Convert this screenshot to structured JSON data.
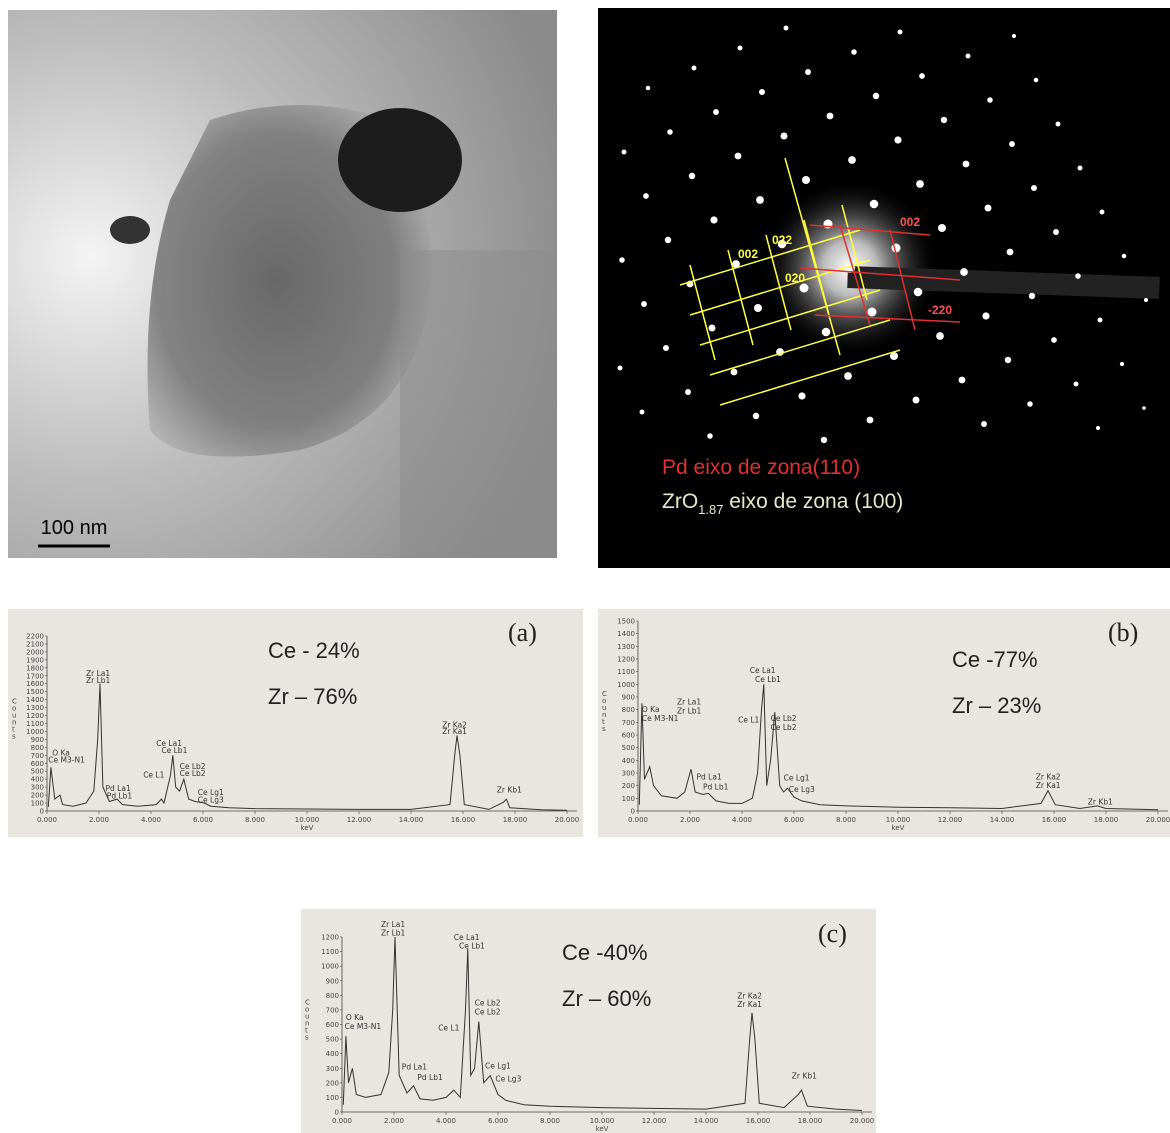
{
  "images": [
    {
      "scale_bar": "100 nm"
    },
    {
      "spot_labels": [
        {
          "text": "002",
          "color": "#ffff40"
        },
        {
          "text": "022",
          "color": "#ffff40"
        },
        {
          "text": "020",
          "color": "#ffff40"
        },
        {
          "text": "002",
          "color": "#ff5050"
        },
        {
          "text": "-220",
          "color": "#ff5050"
        }
      ],
      "legend_pd": "Pd eixo de zona(110)",
      "legend_zr": {
        "text": "ZrO",
        "sub": "1.87",
        "rest": " eixo de zona (100)"
      }
    }
  ],
  "chart_data": [
    {
      "type": "line",
      "panel": "(a)",
      "composition": [
        "Ce - 24%",
        "Zr – 76%"
      ],
      "y_label": "Counts",
      "x_label": "keV",
      "color": "#333333",
      "x": [
        0.05,
        0.15,
        0.3,
        0.5,
        0.6,
        1.0,
        1.5,
        1.8,
        1.95,
        2.04,
        2.15,
        2.4,
        2.7,
        2.9,
        3.5,
        4.2,
        4.4,
        4.5,
        4.75,
        4.84,
        4.95,
        5.1,
        5.26,
        5.45,
        5.7,
        6.05,
        6.3,
        7,
        8,
        10,
        12,
        14,
        15.5,
        15.68,
        15.77,
        15.88,
        16.05,
        17,
        17.55,
        17.67,
        17.8,
        19,
        20
      ],
      "values": [
        50,
        550,
        150,
        200,
        80,
        60,
        100,
        250,
        900,
        1600,
        300,
        120,
        150,
        80,
        60,
        80,
        150,
        100,
        450,
        700,
        300,
        250,
        400,
        150,
        120,
        100,
        60,
        40,
        30,
        25,
        20,
        20,
        80,
        700,
        950,
        700,
        80,
        20,
        110,
        150,
        40,
        15,
        10
      ],
      "xlim": [
        0,
        20
      ],
      "ylim": [
        0,
        2200
      ],
      "xticks": [
        {
          "value": 0,
          "label": "0.000"
        },
        {
          "value": 2,
          "label": "2.000"
        },
        {
          "value": 4,
          "label": "4.000"
        },
        {
          "value": 6,
          "label": "6.000"
        },
        {
          "value": 8,
          "label": "8.000"
        },
        {
          "value": 10,
          "label": "10.000"
        },
        {
          "value": 12,
          "label": "12.000"
        },
        {
          "value": 14,
          "label": "14.000"
        },
        {
          "value": 16,
          "label": "16.000"
        },
        {
          "value": 18,
          "label": "18.000"
        },
        {
          "value": 20,
          "label": "20.000"
        }
      ],
      "yticks": [
        0,
        100,
        200,
        300,
        400,
        500,
        600,
        700,
        800,
        900,
        1000,
        1100,
        1200,
        1300,
        1400,
        1500,
        1600,
        1700,
        1800,
        1900,
        2000,
        2100,
        2200
      ],
      "annotations": [
        {
          "text": "O Ka",
          "x": 0.2,
          "y": 700
        },
        {
          "text": "Ce M3-N1",
          "x": 0.05,
          "y": 610
        },
        {
          "text": "Zr La1",
          "x": 1.5,
          "y": 1700
        },
        {
          "text": "Zr Lb1",
          "x": 1.5,
          "y": 1610
        },
        {
          "text": "Pd La1",
          "x": 2.25,
          "y": 250
        },
        {
          "text": "Pd Lb1",
          "x": 2.3,
          "y": 160
        },
        {
          "text": "Ce La1",
          "x": 4.2,
          "y": 820
        },
        {
          "text": "Ce Lb1",
          "x": 4.4,
          "y": 730
        },
        {
          "text": "Ce L1",
          "x": 3.7,
          "y": 420
        },
        {
          "text": "Ce Lb2",
          "x": 5.1,
          "y": 530
        },
        {
          "text": "Ce Lb2",
          "x": 5.1,
          "y": 440
        },
        {
          "text": "Ce Lg1",
          "x": 5.8,
          "y": 200
        },
        {
          "text": "Ce Lg3",
          "x": 5.8,
          "y": 110
        },
        {
          "text": "Zr Ka2",
          "x": 15.2,
          "y": 1050
        },
        {
          "text": "Zr Ka1",
          "x": 15.2,
          "y": 970
        },
        {
          "text": "Zr Kb1",
          "x": 17.3,
          "y": 230
        }
      ]
    },
    {
      "type": "line",
      "panel": "(b)",
      "composition": [
        "Ce -77%",
        "Zr – 23%"
      ],
      "y_label": "Counts",
      "x_label": "keV",
      "color": "#333333",
      "x": [
        0.05,
        0.15,
        0.25,
        0.45,
        0.6,
        0.9,
        1.5,
        1.8,
        2.04,
        2.2,
        2.5,
        2.7,
        3.0,
        3.5,
        4.0,
        4.4,
        4.6,
        4.75,
        4.84,
        4.95,
        5.1,
        5.26,
        5.45,
        5.6,
        5.75,
        6.0,
        6.3,
        7,
        8,
        10,
        12,
        14,
        15.5,
        15.77,
        16.05,
        17,
        17.67,
        18,
        20
      ],
      "values": [
        50,
        850,
        250,
        350,
        200,
        120,
        100,
        150,
        330,
        150,
        130,
        140,
        80,
        60,
        60,
        100,
        300,
        800,
        1000,
        200,
        400,
        780,
        200,
        150,
        180,
        110,
        80,
        50,
        40,
        30,
        25,
        20,
        60,
        160,
        50,
        20,
        40,
        20,
        10
      ],
      "xlim": [
        0,
        20
      ],
      "ylim": [
        0,
        1500
      ],
      "xticks": [
        {
          "value": 0,
          "label": "0.000"
        },
        {
          "value": 2,
          "label": "2.000"
        },
        {
          "value": 4,
          "label": "4.000"
        },
        {
          "value": 6,
          "label": "6.000"
        },
        {
          "value": 8,
          "label": "8.000"
        },
        {
          "value": 10,
          "label": "10.000"
        },
        {
          "value": 12,
          "label": "12.000"
        },
        {
          "value": 14,
          "label": "14.000"
        },
        {
          "value": 16,
          "label": "16.000"
        },
        {
          "value": 18,
          "label": "18.000"
        },
        {
          "value": 20,
          "label": "20.000"
        }
      ],
      "yticks": [
        0,
        100,
        200,
        300,
        400,
        500,
        600,
        700,
        800,
        900,
        1000,
        1100,
        1200,
        1300,
        1400,
        1500
      ],
      "annotations": [
        {
          "text": "O Ka",
          "x": 0.15,
          "y": 780
        },
        {
          "text": "Ce M3-N1",
          "x": 0.15,
          "y": 710
        },
        {
          "text": "Zr La1",
          "x": 1.5,
          "y": 840
        },
        {
          "text": "Zr Lb1",
          "x": 1.5,
          "y": 770
        },
        {
          "text": "Pd La1",
          "x": 2.25,
          "y": 250
        },
        {
          "text": "Pd Lb1",
          "x": 2.5,
          "y": 170
        },
        {
          "text": "Ce La1",
          "x": 4.3,
          "y": 1090
        },
        {
          "text": "Ce Lb1",
          "x": 4.5,
          "y": 1020
        },
        {
          "text": "Ce L1",
          "x": 3.85,
          "y": 700
        },
        {
          "text": "Ce Lb2",
          "x": 5.1,
          "y": 710
        },
        {
          "text": "Ce Lb2",
          "x": 5.1,
          "y": 640
        },
        {
          "text": "Ce Lg1",
          "x": 5.6,
          "y": 240
        },
        {
          "text": "Ce Lg3",
          "x": 5.8,
          "y": 150
        },
        {
          "text": "Zr Ka2",
          "x": 15.3,
          "y": 250
        },
        {
          "text": "Zr Ka1",
          "x": 15.3,
          "y": 180
        },
        {
          "text": "Zr Kb1",
          "x": 17.3,
          "y": 50
        }
      ]
    },
    {
      "type": "line",
      "panel": "(c)",
      "composition": [
        "Ce -40%",
        "Zr – 60%"
      ],
      "y_label": "Counts",
      "x_label": "keV",
      "color": "#333333",
      "x": [
        0.05,
        0.15,
        0.25,
        0.4,
        0.55,
        0.9,
        1.5,
        1.8,
        1.95,
        2.04,
        2.2,
        2.5,
        2.75,
        3.0,
        3.5,
        4.0,
        4.3,
        4.55,
        4.75,
        4.84,
        4.95,
        5.1,
        5.26,
        5.45,
        5.7,
        6.0,
        6.3,
        7,
        8,
        10,
        12,
        14,
        15.5,
        15.68,
        15.77,
        15.88,
        16.05,
        17,
        17.55,
        17.67,
        17.9,
        19,
        20
      ],
      "values": [
        50,
        520,
        200,
        300,
        120,
        100,
        120,
        270,
        700,
        1200,
        250,
        130,
        180,
        90,
        80,
        100,
        150,
        100,
        700,
        1120,
        250,
        300,
        620,
        200,
        250,
        120,
        80,
        50,
        40,
        30,
        25,
        20,
        60,
        500,
        680,
        500,
        60,
        30,
        120,
        150,
        40,
        20,
        10
      ],
      "xlim": [
        0,
        20
      ],
      "ylim": [
        0,
        1200
      ],
      "xticks": [
        {
          "value": 0,
          "label": "0.000"
        },
        {
          "value": 2,
          "label": "2.000"
        },
        {
          "value": 4,
          "label": "4.000"
        },
        {
          "value": 6,
          "label": "6.000"
        },
        {
          "value": 8,
          "label": "8.000"
        },
        {
          "value": 10,
          "label": "10.000"
        },
        {
          "value": 12,
          "label": "12.000"
        },
        {
          "value": 14,
          "label": "14.000"
        },
        {
          "value": 16,
          "label": "16.000"
        },
        {
          "value": 18,
          "label": "18.000"
        },
        {
          "value": 20,
          "label": "20.000"
        }
      ],
      "yticks": [
        0,
        100,
        200,
        300,
        400,
        500,
        600,
        700,
        800,
        900,
        1000,
        1100,
        1200
      ],
      "annotations": [
        {
          "text": "O Ka",
          "x": 0.15,
          "y": 630
        },
        {
          "text": "Ce M3-N1",
          "x": 0.1,
          "y": 570
        },
        {
          "text": "Zr La1",
          "x": 1.5,
          "y": 1270
        },
        {
          "text": "Zr Lb1",
          "x": 1.5,
          "y": 1210
        },
        {
          "text": "Pd La1",
          "x": 2.3,
          "y": 290
        },
        {
          "text": "Pd Lb1",
          "x": 2.9,
          "y": 220
        },
        {
          "text": "Ce La1",
          "x": 4.3,
          "y": 1180
        },
        {
          "text": "Ce Lb1",
          "x": 4.5,
          "y": 1120
        },
        {
          "text": "Ce L1",
          "x": 3.7,
          "y": 560
        },
        {
          "text": "Ce Lb2",
          "x": 5.1,
          "y": 730
        },
        {
          "text": "Ce Lb2",
          "x": 5.1,
          "y": 670
        },
        {
          "text": "Ce Lg1",
          "x": 5.5,
          "y": 300
        },
        {
          "text": "Ce Lg3",
          "x": 5.9,
          "y": 210
        },
        {
          "text": "Zr Ka2",
          "x": 15.2,
          "y": 780
        },
        {
          "text": "Zr Ka1",
          "x": 15.2,
          "y": 720
        },
        {
          "text": "Zr Kb1",
          "x": 17.3,
          "y": 230
        }
      ]
    }
  ]
}
